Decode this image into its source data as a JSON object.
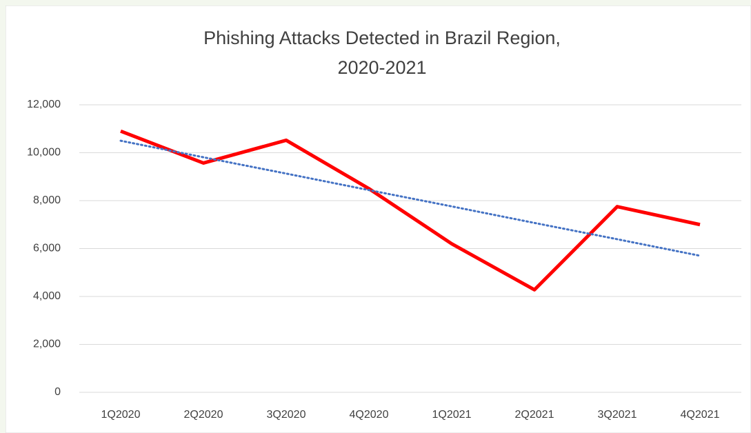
{
  "chart_data": {
    "type": "line",
    "title": [
      "Phishing Attacks Detected in Brazil Region,",
      "2020-2021"
    ],
    "categories": [
      "1Q2020",
      "2Q2020",
      "3Q2020",
      "4Q2020",
      "1Q2021",
      "2Q2021",
      "3Q2021",
      "4Q2021"
    ],
    "series": [
      {
        "color": "#ff0000",
        "style": "solid",
        "values": [
          10900,
          9570,
          10520,
          8500,
          6200,
          4280,
          7750,
          7000
        ]
      },
      {
        "color": "#4472c4",
        "style": "dotted",
        "values": [
          10500,
          9810,
          9130,
          8440,
          7760,
          7070,
          6390,
          5700
        ]
      }
    ],
    "ylim": [
      0,
      12000
    ],
    "yticks": [
      0,
      {
        "value": 2000,
        "label": "2,000"
      },
      {
        "value": 4000,
        "label": "4,000"
      },
      {
        "value": 6000,
        "label": "6,000"
      },
      {
        "value": 8000,
        "label": "8,000"
      },
      {
        "value": 10000,
        "label": "10,000"
      },
      {
        "value": 12000,
        "label": "12,000"
      }
    ],
    "grid": true
  }
}
